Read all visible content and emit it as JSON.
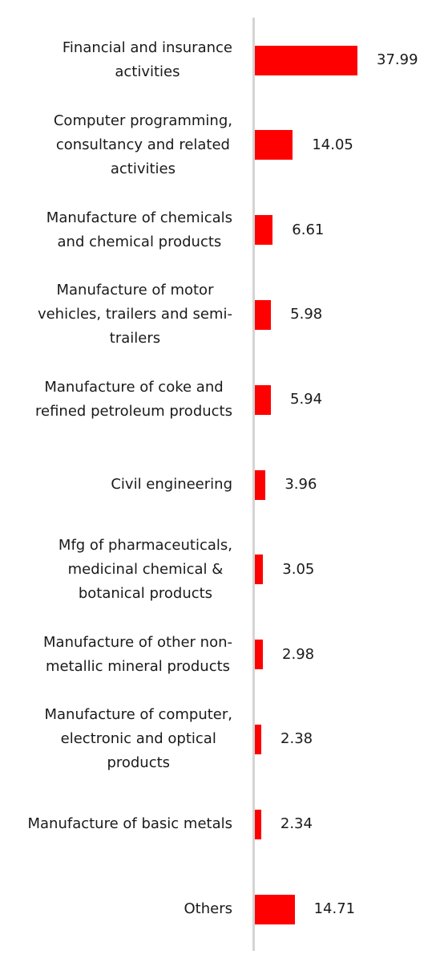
{
  "chart_data": {
    "type": "bar",
    "orientation": "horizontal",
    "color": "#ff0000",
    "categories": [
      "Financial and insurance\nactivities",
      "Computer programming,\nconsultancy and related\nactivities",
      "Manufacture of chemicals\nand chemical products",
      "Manufacture of motor\nvehicles, trailers and semi-\ntrailers",
      "Manufacture of coke and\nrefined petroleum products",
      "Civil engineering",
      "Mfg of pharmaceuticals,\nmedicinal chemical &\nbotanical products",
      "Manufacture of other non-\nmetallic mineral products",
      "Manufacture of computer,\nelectronic and optical\nproducts",
      "Manufacture of basic metals",
      "Others"
    ],
    "values": [
      37.99,
      14.05,
      6.61,
      5.98,
      5.94,
      3.96,
      3.05,
      2.98,
      2.38,
      2.34,
      14.71
    ]
  }
}
